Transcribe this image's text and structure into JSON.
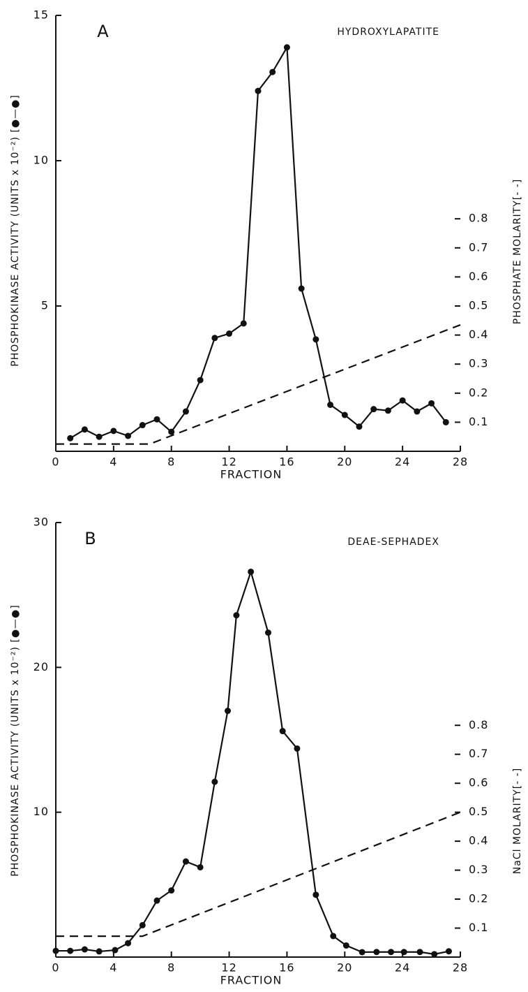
{
  "chart_data": [
    {
      "type": "line",
      "annotation": "A",
      "subtitle": "HYDROXYLAPATITE",
      "xlabel": "FRACTION",
      "ylabel": "PHOSPHOKINASE ACTIVITY (UNITS x 10⁻²) [●—●]",
      "y2label": "PHOSPHATE MOLARITY[- -]",
      "xlim": [
        0,
        28
      ],
      "xticks": [
        0,
        4,
        8,
        12,
        16,
        20,
        24,
        28
      ],
      "ylim": [
        0,
        15
      ],
      "yticks": [
        5,
        10,
        15
      ],
      "y2lim": [
        0,
        1.5
      ],
      "y2ticks": [
        0.1,
        0.2,
        0.3,
        0.4,
        0.5,
        0.6,
        0.7,
        0.8
      ],
      "series": [
        {
          "color": "#111",
          "marker": true,
          "x": [
            1,
            2,
            3,
            4,
            5,
            6,
            7,
            8,
            9,
            10,
            11,
            12,
            13,
            14,
            15,
            16,
            17,
            18,
            19,
            20,
            21,
            22,
            23,
            24,
            25,
            26,
            27
          ],
          "values": [
            0.45,
            0.75,
            0.5,
            0.7,
            0.53,
            0.9,
            1.1,
            0.67,
            1.37,
            2.45,
            3.9,
            4.05,
            4.4,
            12.4,
            13.05,
            13.9,
            5.6,
            3.85,
            1.6,
            1.25,
            0.85,
            1.45,
            1.4,
            1.75,
            1.37,
            1.65,
            1.0
          ]
        },
        {
          "color": "#111",
          "dashed": true,
          "axis": "y2",
          "x": [
            0,
            6.5,
            28
          ],
          "values": [
            0.025,
            0.025,
            0.435
          ]
        }
      ]
    },
    {
      "type": "line",
      "annotation": "B",
      "subtitle": "DEAE-SEPHADEX",
      "xlabel": "FRACTION",
      "ylabel": "PHOSPHOKINASE ACTIVITY (UNITS x 10⁻²) [●—●]",
      "y2label": "NaCl MOLARITY[- -]",
      "xlim": [
        0,
        28
      ],
      "xticks": [
        0,
        4,
        8,
        12,
        16,
        20,
        24,
        28
      ],
      "ylim": [
        0,
        30
      ],
      "yticks": [
        10,
        20,
        30
      ],
      "y2lim": [
        0,
        1.5
      ],
      "y2ticks": [
        0.1,
        0.2,
        0.3,
        0.4,
        0.5,
        0.6,
        0.7,
        0.8
      ],
      "series": [
        {
          "color": "#111",
          "marker": true,
          "x": [
            0,
            1,
            2,
            3,
            4.1,
            5,
            6,
            7,
            8,
            9,
            10,
            11,
            11.9,
            12.5,
            13.5,
            14.7,
            15.7,
            16.7,
            18,
            19.2,
            20.1,
            21.2,
            22.2,
            23.2,
            24.1,
            25.2,
            26.2,
            27.2
          ],
          "values": [
            0.43,
            0.43,
            0.53,
            0.39,
            0.48,
            0.96,
            2.2,
            3.9,
            4.6,
            6.6,
            6.2,
            12.1,
            17.0,
            23.6,
            26.6,
            22.4,
            15.6,
            14.4,
            4.3,
            1.45,
            0.8,
            0.34,
            0.35,
            0.35,
            0.35,
            0.35,
            0.2,
            0.4
          ]
        },
        {
          "color": "#111",
          "dashed": true,
          "axis": "y2",
          "x": [
            0,
            6,
            28
          ],
          "values": [
            0.072,
            0.072,
            0.5
          ]
        }
      ]
    }
  ]
}
